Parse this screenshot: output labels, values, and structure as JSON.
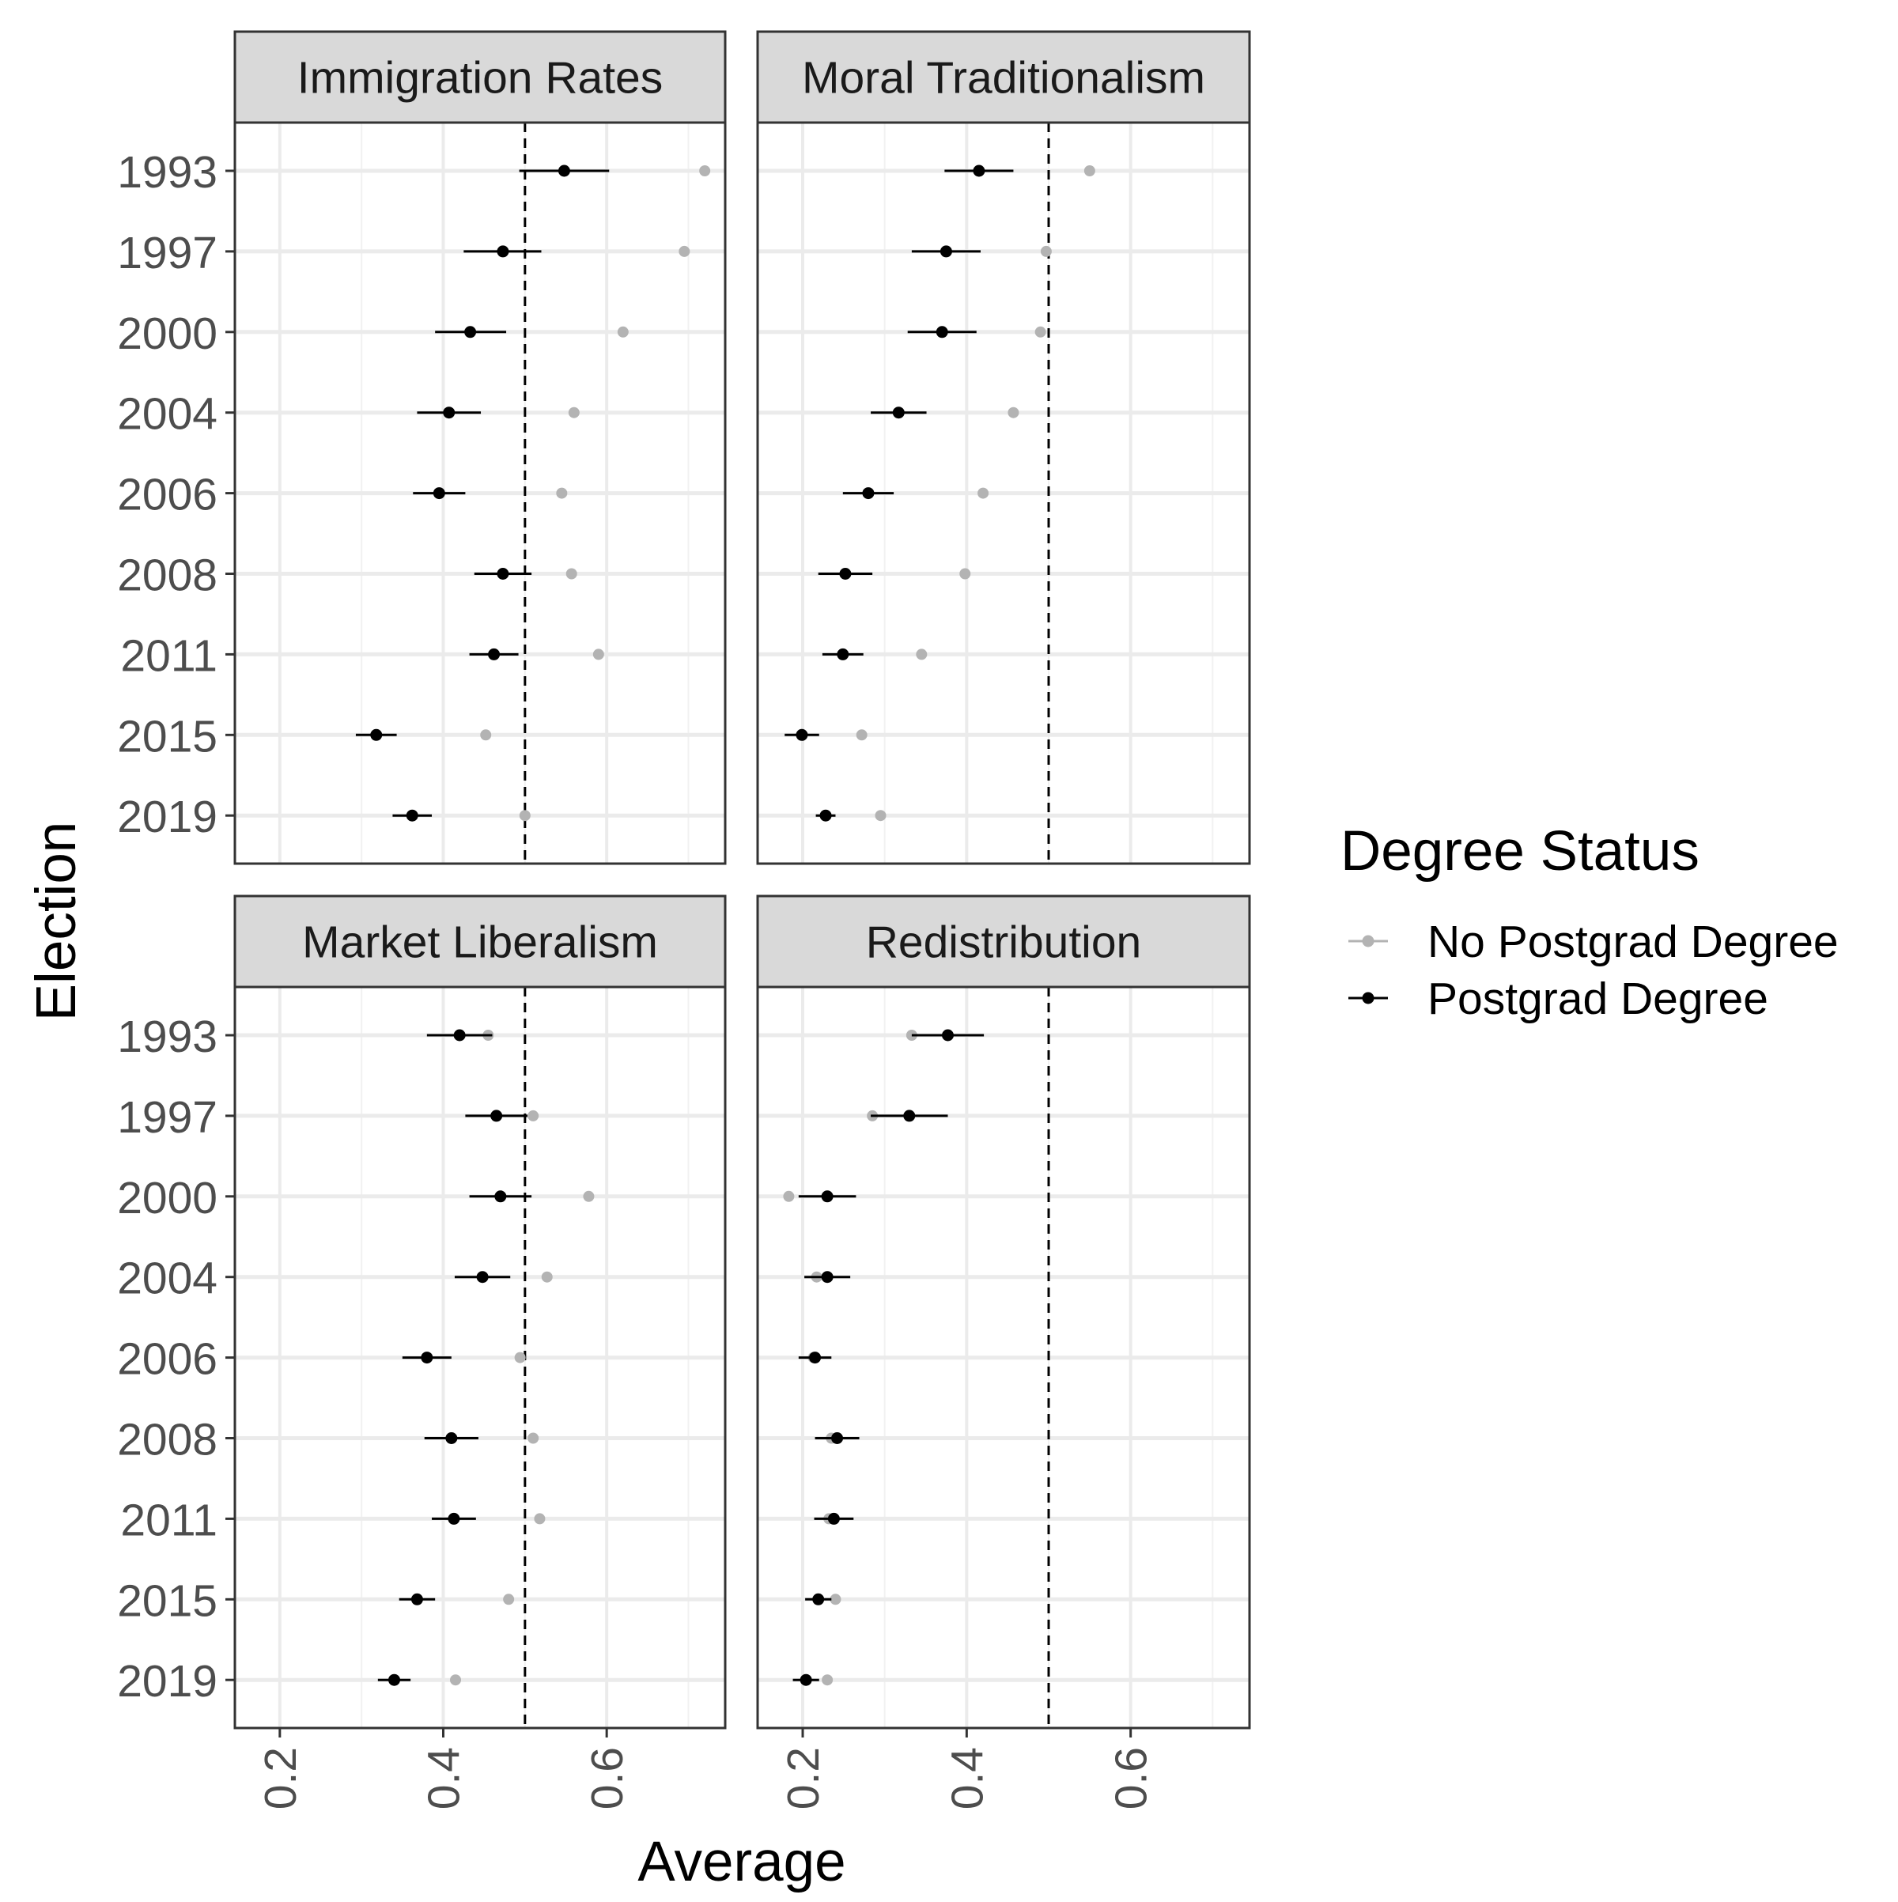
{
  "chart_data": {
    "type": "scatter",
    "xlabel": "Average",
    "ylabel": "Election",
    "xlim": [
      0.145,
      0.745
    ],
    "x_ticks": [
      0.2,
      0.4,
      0.6
    ],
    "x_tick_labels": [
      "0.2",
      "0.4",
      "0.6"
    ],
    "elections": [
      "1993",
      "1997",
      "2000",
      "2004",
      "2006",
      "2008",
      "2011",
      "2015",
      "2019"
    ],
    "reference_line": 0.5,
    "grid": true,
    "legend": {
      "title": "Degree Status",
      "position": "right",
      "entries": [
        {
          "label": "No Postgrad Degree",
          "color": "#b3b3b3"
        },
        {
          "label": "Postgrad Degree",
          "color": "#000000"
        }
      ]
    },
    "panels": [
      {
        "title": "Immigration Rates",
        "series": [
          {
            "name": "No Postgrad Degree",
            "values": [
              0.72,
              0.695,
              0.62,
              0.56,
              0.545,
              0.557,
              0.59,
              0.452,
              0.5
            ]
          },
          {
            "name": "Postgrad Degree",
            "values": [
              0.548,
              0.473,
              0.433,
              0.407,
              0.395,
              0.473,
              0.462,
              0.318,
              0.362
            ],
            "lower": [
              0.493,
              0.425,
              0.39,
              0.368,
              0.363,
              0.438,
              0.432,
              0.293,
              0.338
            ],
            "upper": [
              0.603,
              0.52,
              0.477,
              0.446,
              0.427,
              0.508,
              0.492,
              0.343,
              0.386
            ]
          }
        ]
      },
      {
        "title": "Moral Traditionalism",
        "series": [
          {
            "name": "No Postgrad Degree",
            "values": [
              0.55,
              0.497,
              0.49,
              0.457,
              0.42,
              0.398,
              0.345,
              0.272,
              0.295
            ]
          },
          {
            "name": "Postgrad Degree",
            "values": [
              0.415,
              0.375,
              0.37,
              0.317,
              0.28,
              0.252,
              0.249,
              0.199,
              0.228
            ],
            "lower": [
              0.373,
              0.333,
              0.328,
              0.283,
              0.249,
              0.219,
              0.224,
              0.178,
              0.216
            ],
            "upper": [
              0.457,
              0.417,
              0.412,
              0.351,
              0.311,
              0.285,
              0.274,
              0.22,
              0.24
            ]
          }
        ]
      },
      {
        "title": "Market Liberalism",
        "series": [
          {
            "name": "No Postgrad Degree",
            "values": [
              0.455,
              0.51,
              0.578,
              0.527,
              0.494,
              0.51,
              0.518,
              0.48,
              0.415
            ]
          },
          {
            "name": "Postgrad Degree",
            "values": [
              0.42,
              0.465,
              0.47,
              0.448,
              0.38,
              0.41,
              0.413,
              0.368,
              0.34
            ],
            "lower": [
              0.38,
              0.427,
              0.432,
              0.414,
              0.35,
              0.377,
              0.386,
              0.346,
              0.32
            ],
            "upper": [
              0.46,
              0.503,
              0.508,
              0.482,
              0.41,
              0.443,
              0.44,
              0.39,
              0.36
            ]
          }
        ]
      },
      {
        "title": "Redistribution",
        "series": [
          {
            "name": "No Postgrad Degree",
            "values": [
              0.333,
              0.285,
              0.183,
              0.217,
              0.213,
              0.235,
              0.232,
              0.24,
              0.23
            ]
          },
          {
            "name": "Postgrad Degree",
            "values": [
              0.377,
              0.33,
              0.23,
              0.23,
              0.215,
              0.242,
              0.238,
              0.219,
              0.204
            ],
            "lower": [
              0.333,
              0.283,
              0.195,
              0.202,
              0.195,
              0.215,
              0.214,
              0.203,
              0.188
            ],
            "upper": [
              0.421,
              0.377,
              0.265,
              0.258,
              0.235,
              0.269,
              0.262,
              0.235,
              0.22
            ]
          }
        ]
      }
    ]
  }
}
